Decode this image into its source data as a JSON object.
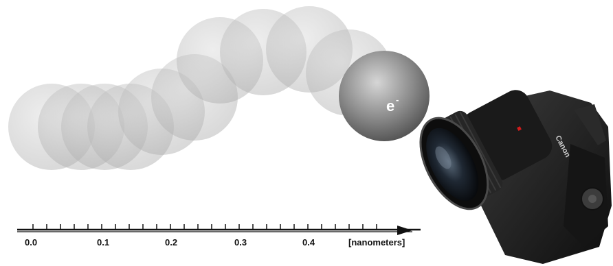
{
  "electron": {
    "symbol": "e",
    "charge": "-"
  },
  "scale": {
    "ticks": [
      {
        "value": "0.0"
      },
      {
        "value": "0.1"
      },
      {
        "value": "0.2"
      },
      {
        "value": "0.3"
      },
      {
        "value": "0.4"
      }
    ],
    "unit": "[nanometers]"
  },
  "camera": {
    "brand": "Canon"
  },
  "colors": {
    "ghost_fill": "#bdbdbd",
    "electron_dark": "#6e6e6e",
    "electron_light": "#cfcfcf",
    "axis": "#111111",
    "camera_body": "#1c1c1c"
  }
}
